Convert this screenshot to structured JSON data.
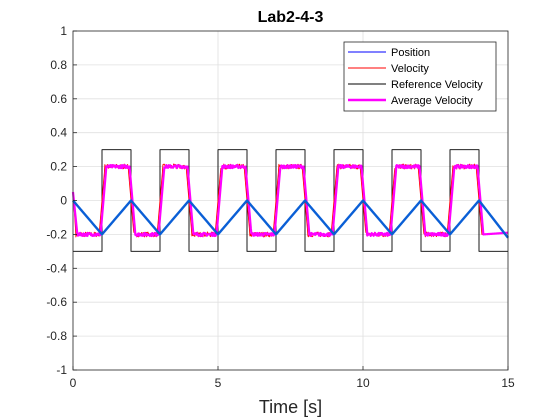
{
  "chart_data": {
    "type": "line",
    "title": "Lab2-4-3",
    "xlabel": "Time [s]",
    "ylabel": "",
    "xlim": [
      0,
      15
    ],
    "ylim": [
      -1,
      1
    ],
    "x_ticks": [
      0,
      5,
      10,
      15
    ],
    "y_ticks": [
      -1,
      -0.8,
      -0.6,
      -0.4,
      -0.2,
      0,
      0.2,
      0.4,
      0.6,
      0.8,
      1
    ],
    "grid": true,
    "legend_position": "top-right",
    "series": [
      {
        "name": "Position",
        "color": "#0000ff",
        "x": [
          0,
          1,
          2,
          3,
          4,
          5,
          6,
          7,
          8,
          9,
          10,
          11,
          12,
          13,
          14,
          15
        ],
        "y": [
          0,
          -0.2,
          0,
          -0.2,
          0,
          -0.2,
          0,
          -0.2,
          0,
          -0.2,
          0,
          -0.2,
          0,
          -0.2,
          0,
          -0.22
        ]
      },
      {
        "name": "Velocity",
        "color": "#ff0000",
        "x": [
          0,
          0.1,
          0.9,
          1.1,
          1.9,
          2.1,
          2.9,
          3.1,
          3.9,
          4.1,
          4.9,
          5.1,
          5.9,
          6.1,
          6.9,
          7.1,
          7.9,
          8.1,
          8.9,
          9.1,
          9.9,
          10.1,
          10.9,
          11.1,
          11.9,
          12.1,
          12.9,
          13.1,
          13.9,
          14.1,
          15
        ],
        "y": [
          0.05,
          -0.2,
          -0.2,
          0.2,
          0.2,
          -0.2,
          -0.2,
          0.2,
          0.2,
          -0.2,
          -0.2,
          0.2,
          0.2,
          -0.2,
          -0.2,
          0.2,
          0.2,
          -0.2,
          -0.2,
          0.2,
          0.2,
          -0.2,
          -0.2,
          0.2,
          0.2,
          -0.2,
          -0.2,
          0.2,
          0.2,
          -0.2,
          -0.19
        ]
      },
      {
        "name": "Reference Velocity",
        "color": "#000000",
        "x": [
          0,
          1,
          1,
          2,
          2,
          3,
          3,
          4,
          4,
          5,
          5,
          6,
          6,
          7,
          7,
          8,
          8,
          9,
          9,
          10,
          10,
          11,
          11,
          12,
          12,
          13,
          13,
          14,
          14,
          15
        ],
        "y": [
          -0.3,
          -0.3,
          0.3,
          0.3,
          -0.3,
          -0.3,
          0.3,
          0.3,
          -0.3,
          -0.3,
          0.3,
          0.3,
          -0.3,
          -0.3,
          0.3,
          0.3,
          -0.3,
          -0.3,
          0.3,
          0.3,
          -0.3,
          -0.3,
          0.3,
          0.3,
          -0.3,
          -0.3,
          0.3,
          0.3,
          -0.3,
          -0.3
        ]
      },
      {
        "name": "Average Velocity",
        "color": "#ff00ff",
        "x": [
          0,
          0.15,
          0.95,
          1.15,
          1.95,
          2.15,
          2.95,
          3.15,
          3.95,
          4.15,
          4.95,
          5.15,
          5.95,
          6.15,
          6.95,
          7.15,
          7.95,
          8.15,
          8.95,
          9.15,
          9.95,
          10.15,
          10.95,
          11.15,
          11.95,
          12.15,
          12.95,
          13.15,
          13.95,
          14.15,
          15
        ],
        "y": [
          0.05,
          -0.2,
          -0.2,
          0.2,
          0.2,
          -0.2,
          -0.2,
          0.2,
          0.2,
          -0.2,
          -0.2,
          0.2,
          0.2,
          -0.2,
          -0.2,
          0.2,
          0.2,
          -0.2,
          -0.2,
          0.2,
          0.2,
          -0.2,
          -0.2,
          0.2,
          0.2,
          -0.2,
          -0.2,
          0.2,
          0.2,
          -0.2,
          -0.19
        ]
      }
    ]
  }
}
